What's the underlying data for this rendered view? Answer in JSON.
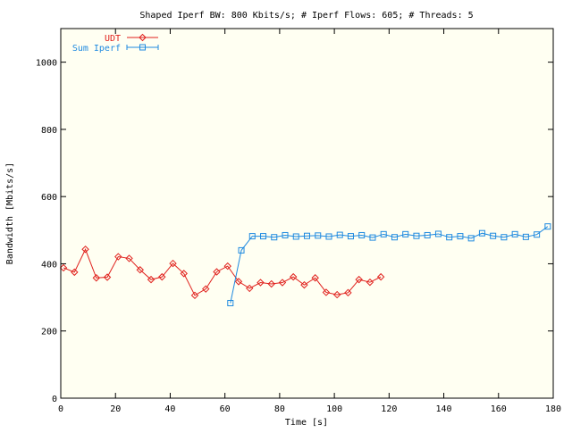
{
  "chart_data": {
    "type": "line",
    "title": "Shaped Iperf BW: 800 Kbits/s; # Iperf Flows: 605; # Threads: 5",
    "xlabel": "Time [s]",
    "ylabel": "Bandwidth [Mbits/s]",
    "xlim": [
      0,
      180
    ],
    "ylim": [
      0,
      1100
    ],
    "xticks": [
      0,
      20,
      40,
      60,
      80,
      100,
      120,
      140,
      160,
      180
    ],
    "yticks": [
      0,
      200,
      400,
      600,
      800,
      1000
    ],
    "grid": false,
    "legend_position": "top-left",
    "series": [
      {
        "name": "UDT",
        "color": "#e0201c",
        "marker": "diamond",
        "x": [
          1,
          5,
          9,
          13,
          17,
          21,
          25,
          29,
          33,
          37,
          41,
          45,
          49,
          53,
          57,
          61,
          65,
          69,
          73,
          77,
          81,
          85,
          89,
          93,
          97,
          101,
          105,
          109,
          113,
          117
        ],
        "y": [
          388,
          375,
          443,
          358,
          360,
          421,
          416,
          382,
          353,
          361,
          401,
          371,
          306,
          325,
          376,
          393,
          347,
          327,
          344,
          340,
          344,
          361,
          337,
          358,
          315,
          308,
          314,
          353,
          345,
          361
        ]
      },
      {
        "name": "Sum Iperf",
        "color": "#1f8ae0",
        "marker": "square",
        "x": [
          62,
          66,
          70,
          74,
          78,
          82,
          86,
          90,
          94,
          98,
          102,
          106,
          110,
          114,
          118,
          122,
          126,
          130,
          134,
          138,
          142,
          146,
          150,
          154,
          158,
          162,
          166,
          170,
          174,
          178
        ],
        "y": [
          283,
          440,
          482,
          482,
          479,
          485,
          481,
          483,
          484,
          481,
          486,
          482,
          485,
          478,
          488,
          479,
          488,
          483,
          485,
          489,
          479,
          482,
          476,
          491,
          483,
          479,
          488,
          480,
          487,
          511
        ]
      }
    ]
  }
}
